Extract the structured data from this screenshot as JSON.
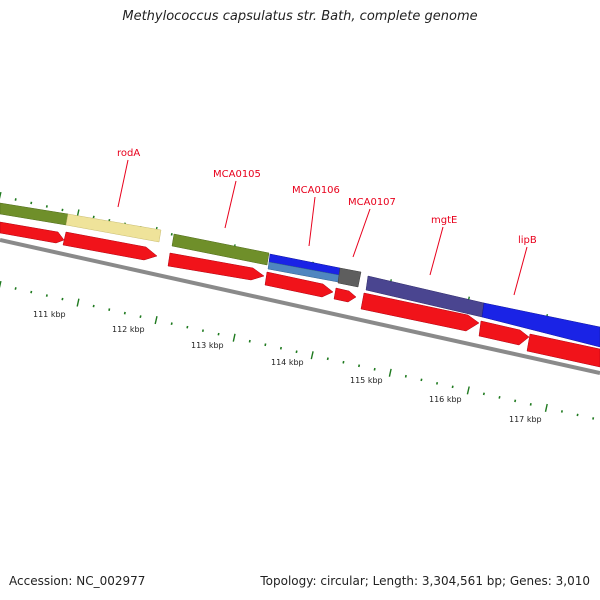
{
  "title": "Methylococcus capsulatus str. Bath, complete genome",
  "accession": "Accession: NC_002977",
  "summary": "Topology: circular; Length: 3,304,561 bp; Genes: 3,010",
  "colors": {
    "label": "#e8001c",
    "tick": "#1f7a1f",
    "backbone": "#8a8a8a",
    "olive": "#6f8f2a",
    "pale_yellow": "#efe39a",
    "blue": "#1a23e6",
    "steel_blue": "#4f86c0",
    "gray": "#5e5e5e",
    "slate_purple": "#4a4590",
    "red": "#f1131a"
  },
  "gene_labels": [
    "rodA",
    "MCA0105",
    "MCA0106",
    "MCA0107",
    "mgtE",
    "lipB"
  ],
  "scale_labels": [
    "111 kbp",
    "112 kbp",
    "113 kbp",
    "114 kbp",
    "115 kbp",
    "116 kbp",
    "117 kbp"
  ]
}
